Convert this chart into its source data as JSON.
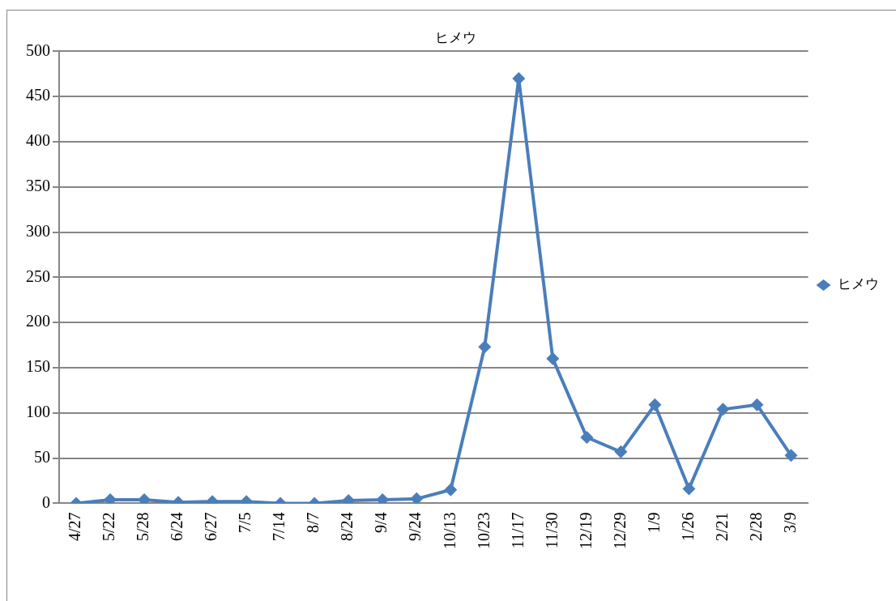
{
  "chart_data": {
    "type": "line",
    "title": "ヒメウ",
    "categories": [
      "4/27",
      "5/22",
      "5/28",
      "6/24",
      "6/27",
      "7/5",
      "7/14",
      "8/7",
      "8/24",
      "9/4",
      "9/24",
      "10/13",
      "10/23",
      "11/17",
      "11/30",
      "12/19",
      "12/29",
      "1/9",
      "1/26",
      "2/21",
      "2/28",
      "3/9"
    ],
    "series": [
      {
        "name": "ヒメウ",
        "color": "#4a7ebb",
        "values": [
          0,
          4,
          4,
          1,
          2,
          2,
          0,
          0,
          3,
          4,
          5,
          15,
          173,
          470,
          160,
          73,
          57,
          109,
          16,
          104,
          109,
          53
        ]
      }
    ],
    "ylim": [
      0,
      500
    ],
    "yticks": [
      0,
      50,
      100,
      150,
      200,
      250,
      300,
      350,
      400,
      450,
      500
    ],
    "grid": "y",
    "legend": "right",
    "marker": "diamond",
    "line_style": "solid"
  }
}
